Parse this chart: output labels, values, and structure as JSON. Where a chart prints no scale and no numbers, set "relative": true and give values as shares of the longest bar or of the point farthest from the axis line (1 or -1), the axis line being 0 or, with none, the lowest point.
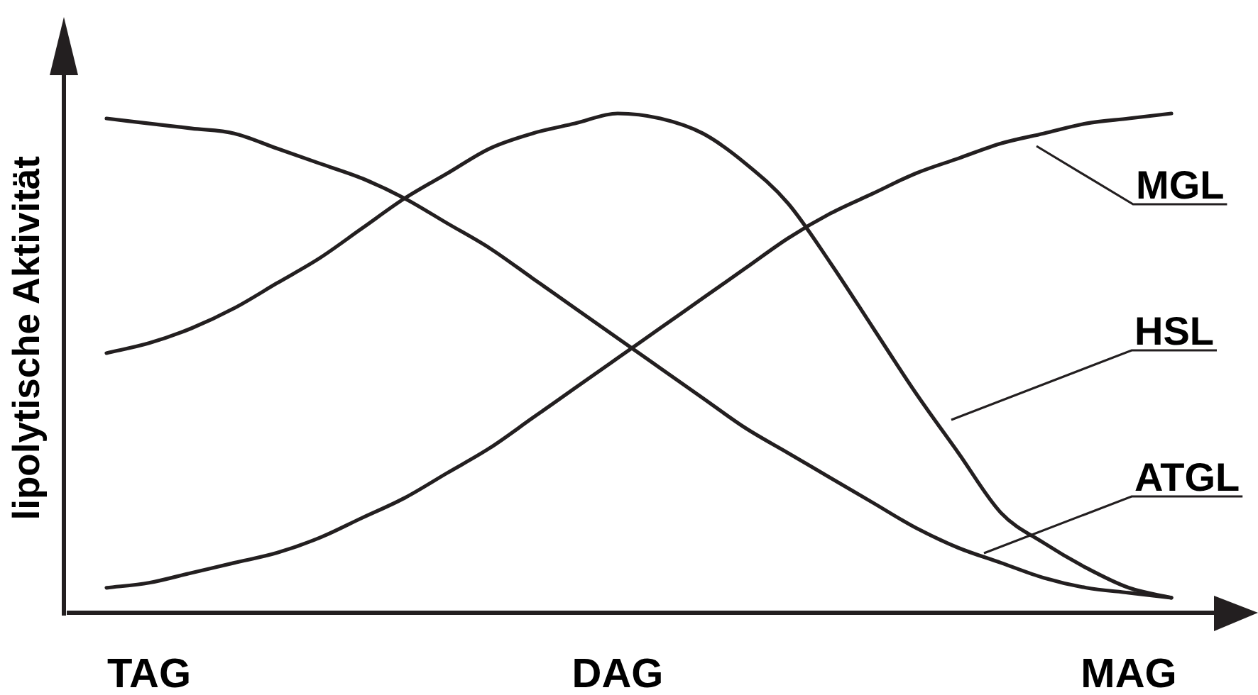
{
  "chart_data": {
    "type": "line",
    "ylabel": "lipolytische Aktivität",
    "relative": true,
    "marker": "none",
    "line_style": "solid",
    "categories": [
      null,
      "TAG",
      null,
      null,
      null,
      null,
      null,
      null,
      null,
      null,
      null,
      null,
      "DAG",
      null,
      null,
      null,
      null,
      null,
      null,
      null,
      null,
      null,
      null,
      null,
      "MAG",
      null
    ],
    "series": [
      {
        "name": "ATGL",
        "color": "#231f20",
        "values": [
          0.99,
          0.98,
          0.97,
          0.96,
          0.93,
          0.9,
          0.87,
          0.83,
          0.78,
          0.73,
          0.67,
          0.61,
          0.55,
          0.49,
          0.43,
          0.37,
          0.32,
          0.27,
          0.22,
          0.17,
          0.13,
          0.1,
          0.07,
          0.05,
          0.04,
          0.03
        ]
      },
      {
        "name": "HSL",
        "color": "#231f20",
        "values": [
          0.52,
          0.54,
          0.57,
          0.61,
          0.66,
          0.71,
          0.77,
          0.83,
          0.88,
          0.93,
          0.96,
          0.98,
          1.0,
          0.99,
          0.96,
          0.9,
          0.82,
          0.7,
          0.57,
          0.44,
          0.32,
          0.2,
          0.14,
          0.09,
          0.05,
          0.03
        ]
      },
      {
        "name": "MGL",
        "color": "#231f20",
        "values": [
          0.05,
          0.06,
          0.08,
          0.1,
          0.12,
          0.15,
          0.19,
          0.23,
          0.28,
          0.33,
          0.39,
          0.45,
          0.51,
          0.57,
          0.63,
          0.69,
          0.75,
          0.8,
          0.84,
          0.88,
          0.91,
          0.94,
          0.96,
          0.98,
          0.99,
          1.0
        ]
      }
    ]
  }
}
